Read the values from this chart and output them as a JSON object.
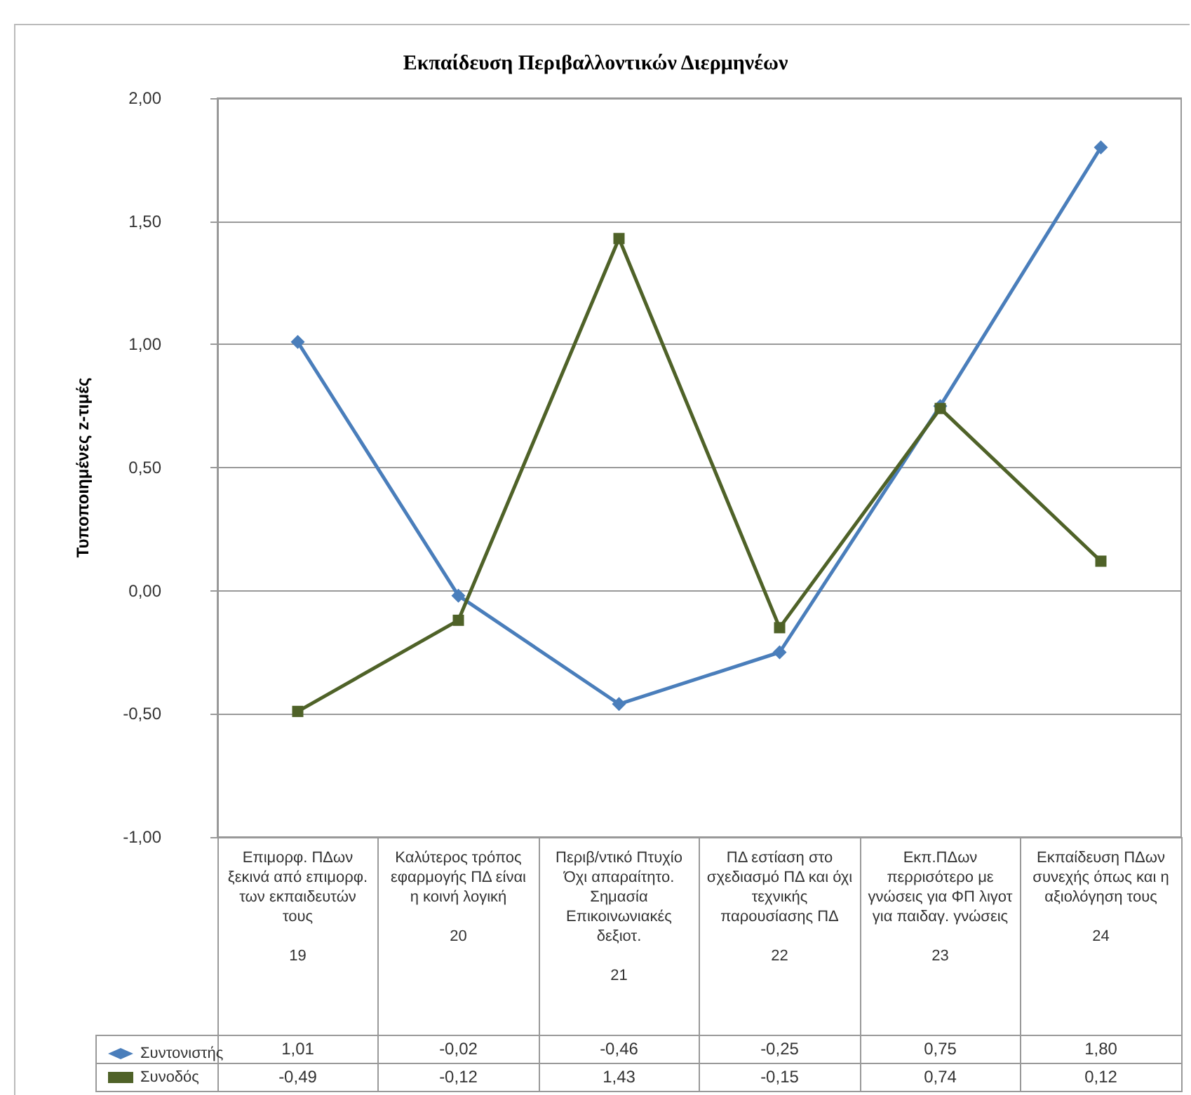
{
  "chart_data": {
    "type": "line",
    "title": "Εκπαίδευση Περιβαλλοντικών Διερμηνέων",
    "ylabel": "Τυποποιημένες z-τιμές",
    "categories": [
      "Επιμορφ. ΠΔων ξεκινά από επιμορφ. των εκπαιδευτών τους\n19",
      "Καλύτερος τρόπος εφαρμογής ΠΔ είναι η κοινή λογική\n20",
      "Περιβ/ντικό Πτυχίο Όχι απαραίτητο. Σημασία Επικοινωνιακές δεξιοτ.\n21",
      "ΠΔ εστίαση στο σχεδιασμό ΠΔ και όχι τεχνικής παρουσίασης ΠΔ\n22",
      "Εκπ.ΠΔων περρισότερο με γνώσεις για ΦΠ λιγοτ για παιδαγ. γνώσεις\n23",
      "Εκπαίδευση ΠΔων συνεχής όπως και η αξιολόγηση τους\n24"
    ],
    "series": [
      {
        "name": "Συντονιστής",
        "color": "#4a7ebb",
        "marker": "diamond",
        "values": [
          1.01,
          -0.02,
          -0.46,
          -0.25,
          0.75,
          1.8
        ],
        "value_labels": [
          "1,01",
          "-0,02",
          "-0,46",
          "-0,25",
          "0,75",
          "1,80"
        ]
      },
      {
        "name": "Συνοδός",
        "color": "#4f6228",
        "marker": "square",
        "values": [
          -0.49,
          -0.12,
          1.43,
          -0.15,
          0.74,
          0.12
        ],
        "value_labels": [
          "-0,49",
          "-0,12",
          "1,43",
          "-0,15",
          "0,74",
          "0,12"
        ]
      }
    ],
    "ylim": [
      -1,
      2
    ],
    "yticks": [
      {
        "value": -1,
        "label": "-1,00"
      },
      {
        "value": -0.5,
        "label": "-0,50"
      },
      {
        "value": 0,
        "label": "0,00"
      },
      {
        "value": 0.5,
        "label": "0,50"
      },
      {
        "value": 1,
        "label": "1,00"
      },
      {
        "value": 1.5,
        "label": "1,50"
      },
      {
        "value": 2,
        "label": "2,00"
      }
    ],
    "grid": "y",
    "legend": "bottom left",
    "line_style": "solid"
  }
}
